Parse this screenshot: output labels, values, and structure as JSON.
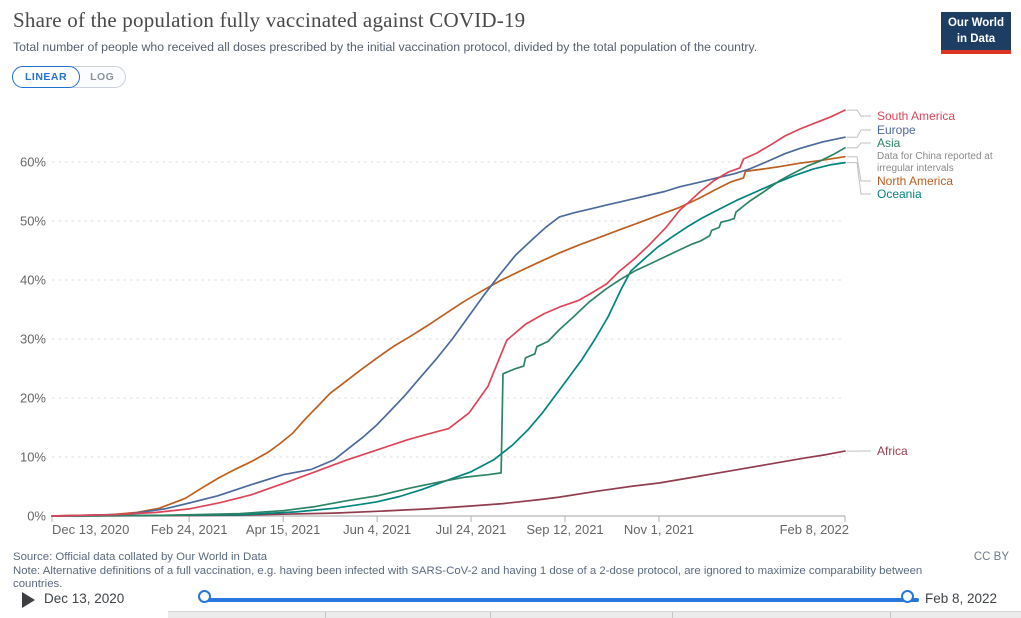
{
  "header": {
    "title": "Share of the population fully vaccinated against COVID-19",
    "subtitle": "Total number of people who received all doses prescribed by the initial vaccination protocol, divided by the total population of the country.",
    "logo_line1": "Our World",
    "logo_line2": "in Data"
  },
  "scale_toggle": {
    "linear": "LINEAR",
    "log": "LOG",
    "active": "LINEAR"
  },
  "chart_data": {
    "type": "line",
    "title": "Share of the population fully vaccinated against COVID-19",
    "xlabel": "",
    "ylabel": "",
    "ylim": [
      0,
      70
    ],
    "grid": true,
    "legend_position": "right",
    "yticks": [
      0,
      10,
      20,
      30,
      40,
      50,
      60
    ],
    "ytick_suffix": "%",
    "x_range_days": [
      0,
      422
    ],
    "x_ticks": [
      {
        "label": "Dec 13, 2020",
        "day": 0
      },
      {
        "label": "Feb 24, 2021",
        "day": 73
      },
      {
        "label": "Apr 15, 2021",
        "day": 123
      },
      {
        "label": "Jun 4, 2021",
        "day": 173
      },
      {
        "label": "Jul 24, 2021",
        "day": 223
      },
      {
        "label": "Sep 12, 2021",
        "day": 273
      },
      {
        "label": "Nov 1, 2021",
        "day": 323
      },
      {
        "label": "Feb 8, 2022",
        "day": 422
      }
    ],
    "series": [
      {
        "name": "South America",
        "color": "#DE4558",
        "points": [
          [
            0,
            0
          ],
          [
            30,
            0.2
          ],
          [
            55,
            0.6
          ],
          [
            73,
            1.2
          ],
          [
            90,
            2.3
          ],
          [
            106,
            3.6
          ],
          [
            123,
            5.5
          ],
          [
            140,
            7.5
          ],
          [
            157,
            9.5
          ],
          [
            173,
            11.2
          ],
          [
            190,
            13
          ],
          [
            205,
            14.3
          ],
          [
            211,
            14.8
          ],
          [
            222,
            17.5
          ],
          [
            232,
            22
          ],
          [
            242,
            29.8
          ],
          [
            252,
            32.5
          ],
          [
            262,
            34.3
          ],
          [
            270,
            35.4
          ],
          [
            280,
            36.5
          ],
          [
            286,
            37.6
          ],
          [
            295,
            39.3
          ],
          [
            302,
            41.5
          ],
          [
            310,
            43.6
          ],
          [
            318,
            46
          ],
          [
            327,
            49
          ],
          [
            334,
            51.8
          ],
          [
            340,
            53.5
          ],
          [
            345,
            55
          ],
          [
            352,
            56.8
          ],
          [
            360,
            58.3
          ],
          [
            366,
            59
          ],
          [
            368,
            60.5
          ],
          [
            375,
            61.5
          ],
          [
            383,
            63
          ],
          [
            390,
            64.4
          ],
          [
            398,
            65.6
          ],
          [
            406,
            66.6
          ],
          [
            414,
            67.6
          ],
          [
            422,
            68.8
          ]
        ]
      },
      {
        "name": "Europe",
        "color": "#4C6A9C",
        "points": [
          [
            0,
            0
          ],
          [
            40,
            0.3
          ],
          [
            60,
            1.2
          ],
          [
            73,
            2.2
          ],
          [
            88,
            3.4
          ],
          [
            106,
            5.3
          ],
          [
            123,
            7
          ],
          [
            138,
            7.9
          ],
          [
            150,
            9.5
          ],
          [
            160,
            12
          ],
          [
            166,
            13.5
          ],
          [
            173,
            15.5
          ],
          [
            180,
            17.8
          ],
          [
            188,
            20.5
          ],
          [
            196,
            23.5
          ],
          [
            205,
            26.8
          ],
          [
            213,
            30
          ],
          [
            221,
            33.5
          ],
          [
            230,
            37.5
          ],
          [
            238,
            40.8
          ],
          [
            247,
            44.3
          ],
          [
            256,
            47
          ],
          [
            263,
            49
          ],
          [
            270,
            50.7
          ],
          [
            278,
            51.4
          ],
          [
            286,
            52
          ],
          [
            295,
            52.7
          ],
          [
            302,
            53.2
          ],
          [
            310,
            53.8
          ],
          [
            318,
            54.4
          ],
          [
            326,
            55
          ],
          [
            334,
            55.8
          ],
          [
            345,
            56.6
          ],
          [
            355,
            57.4
          ],
          [
            363,
            58
          ],
          [
            371,
            58.8
          ],
          [
            380,
            60
          ],
          [
            390,
            61.4
          ],
          [
            398,
            62.3
          ],
          [
            410,
            63.4
          ],
          [
            422,
            64.2
          ]
        ]
      },
      {
        "name": "Asia",
        "color": "#2C8465",
        "annotation": "Data for China reported at irregular intervals",
        "points": [
          [
            0,
            0
          ],
          [
            60,
            0.1
          ],
          [
            100,
            0.4
          ],
          [
            123,
            0.9
          ],
          [
            140,
            1.6
          ],
          [
            157,
            2.6
          ],
          [
            173,
            3.4
          ],
          [
            190,
            4.7
          ],
          [
            205,
            5.7
          ],
          [
            220,
            6.6
          ],
          [
            232,
            7
          ],
          [
            239,
            7.3
          ],
          [
            240,
            24.1
          ],
          [
            246,
            24.9
          ],
          [
            251,
            25.4
          ],
          [
            252,
            26.8
          ],
          [
            257,
            27.5
          ],
          [
            258,
            28.7
          ],
          [
            264,
            29.6
          ],
          [
            270,
            31.6
          ],
          [
            277,
            33.6
          ],
          [
            286,
            36.3
          ],
          [
            295,
            38.5
          ],
          [
            302,
            40
          ],
          [
            310,
            41.5
          ],
          [
            318,
            42.7
          ],
          [
            326,
            43.9
          ],
          [
            334,
            45.1
          ],
          [
            340,
            46
          ],
          [
            345,
            46.6
          ],
          [
            350,
            47.5
          ],
          [
            351,
            48.4
          ],
          [
            355,
            48.9
          ],
          [
            356,
            49.8
          ],
          [
            360,
            50.1
          ],
          [
            363,
            50.4
          ],
          [
            364,
            51.5
          ],
          [
            371,
            53.3
          ],
          [
            379,
            55
          ],
          [
            387,
            56.8
          ],
          [
            394,
            58
          ],
          [
            402,
            59.3
          ],
          [
            409,
            60.2
          ],
          [
            416,
            61.3
          ],
          [
            422,
            62.4
          ]
        ]
      },
      {
        "name": "North America",
        "color": "#BE5E1F",
        "points": [
          [
            0,
            0
          ],
          [
            30,
            0.2
          ],
          [
            45,
            0.6
          ],
          [
            57,
            1.3
          ],
          [
            71,
            3
          ],
          [
            80,
            4.8
          ],
          [
            89,
            6.5
          ],
          [
            98,
            8
          ],
          [
            106,
            9.2
          ],
          [
            115,
            10.8
          ],
          [
            121,
            12.2
          ],
          [
            128,
            14
          ],
          [
            135,
            16.5
          ],
          [
            142,
            18.8
          ],
          [
            148,
            20.8
          ],
          [
            155,
            22.5
          ],
          [
            164,
            24.7
          ],
          [
            173,
            26.8
          ],
          [
            182,
            28.8
          ],
          [
            190,
            30.3
          ],
          [
            200,
            32.3
          ],
          [
            209,
            34.2
          ],
          [
            219,
            36.3
          ],
          [
            228,
            38
          ],
          [
            238,
            39.8
          ],
          [
            249,
            41.5
          ],
          [
            259,
            43
          ],
          [
            270,
            44.6
          ],
          [
            281,
            46
          ],
          [
            292,
            47.3
          ],
          [
            302,
            48.5
          ],
          [
            313,
            49.8
          ],
          [
            323,
            51
          ],
          [
            334,
            52.3
          ],
          [
            344,
            53.8
          ],
          [
            353,
            55.3
          ],
          [
            361,
            56.6
          ],
          [
            368,
            57.3
          ],
          [
            369,
            58.4
          ],
          [
            378,
            58.8
          ],
          [
            387,
            59.2
          ],
          [
            398,
            59.8
          ],
          [
            410,
            60.3
          ],
          [
            422,
            60.9
          ]
        ]
      },
      {
        "name": "Oceania",
        "color": "#00847E",
        "points": [
          [
            0,
            0
          ],
          [
            100,
            0.2
          ],
          [
            130,
            0.7
          ],
          [
            150,
            1.3
          ],
          [
            165,
            2
          ],
          [
            173,
            2.4
          ],
          [
            185,
            3.3
          ],
          [
            197,
            4.5
          ],
          [
            210,
            6
          ],
          [
            223,
            7.5
          ],
          [
            235,
            9.5
          ],
          [
            245,
            12
          ],
          [
            253,
            14.5
          ],
          [
            261,
            17.5
          ],
          [
            268,
            20.5
          ],
          [
            275,
            23.5
          ],
          [
            282,
            26.5
          ],
          [
            289,
            30
          ],
          [
            296,
            33.8
          ],
          [
            303,
            38.5
          ],
          [
            308,
            41.5
          ],
          [
            315,
            43.5
          ],
          [
            322,
            45.5
          ],
          [
            330,
            47.3
          ],
          [
            338,
            49
          ],
          [
            346,
            50.5
          ],
          [
            355,
            52
          ],
          [
            365,
            53.6
          ],
          [
            375,
            55
          ],
          [
            385,
            56.4
          ],
          [
            395,
            57.7
          ],
          [
            405,
            58.8
          ],
          [
            414,
            59.5
          ],
          [
            422,
            59.9
          ]
        ]
      },
      {
        "name": "Africa",
        "color": "#923D4E",
        "points": [
          [
            0,
            0
          ],
          [
            60,
            0.05
          ],
          [
            100,
            0.15
          ],
          [
            123,
            0.3
          ],
          [
            150,
            0.5
          ],
          [
            173,
            0.8
          ],
          [
            200,
            1.2
          ],
          [
            223,
            1.7
          ],
          [
            240,
            2.1
          ],
          [
            260,
            2.8
          ],
          [
            270,
            3.2
          ],
          [
            290,
            4.2
          ],
          [
            310,
            5.1
          ],
          [
            323,
            5.6
          ],
          [
            340,
            6.5
          ],
          [
            360,
            7.6
          ],
          [
            380,
            8.7
          ],
          [
            400,
            9.8
          ],
          [
            412,
            10.4
          ],
          [
            422,
            11
          ]
        ]
      }
    ]
  },
  "footer": {
    "source": "Source: Official data collated by Our World in Data",
    "note": "Note: Alternative definitions of a full vaccination, e.g. having been infected with SARS-CoV-2 and having 1 dose of a 2-dose protocol, are ignored to maximize comparability between countries.",
    "license": "CC BY"
  },
  "timeline": {
    "start": "Dec 13, 2020",
    "end": "Feb 8, 2022"
  }
}
